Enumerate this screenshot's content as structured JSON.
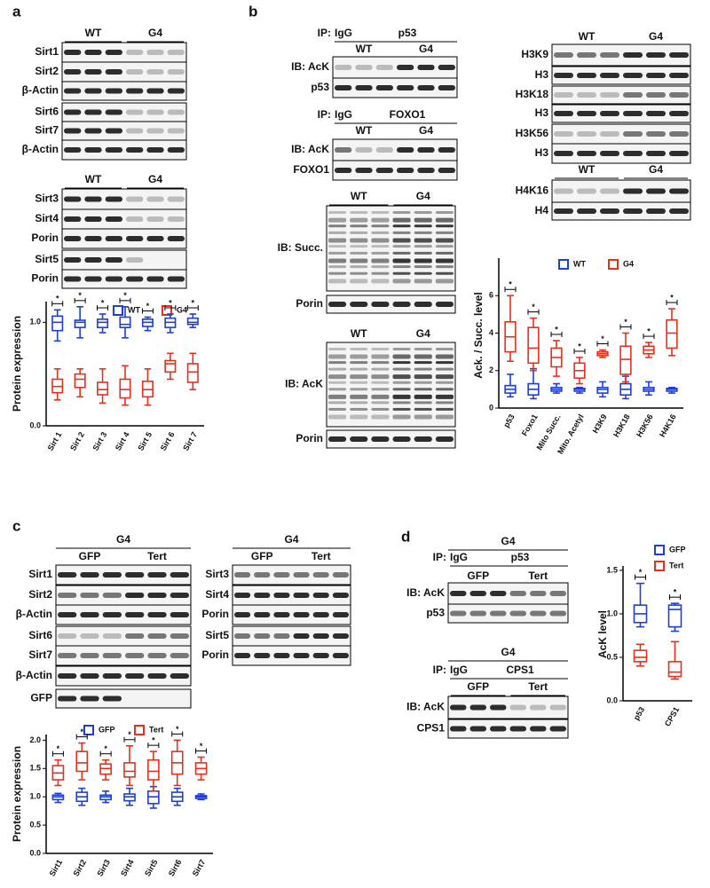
{
  "figure": {
    "panel_labels": [
      "a",
      "b",
      "c",
      "d"
    ],
    "blots": [
      {
        "groups": [
          "WT",
          "G4"
        ],
        "rows": [
          "Sirt1",
          "Sirt2",
          "β-Actin",
          "Sirt6",
          "Sirt7",
          "β-Actin"
        ]
      },
      {
        "groups": [
          "WT",
          "G4"
        ],
        "rows": [
          "Sirt3",
          "Sirt4",
          "Porin",
          "Sirt5",
          "Porin"
        ]
      },
      {
        "ip": {
          "prefix": "IP:",
          "control": "IgG",
          "target": "p53"
        },
        "groups": [
          "WT",
          "G4"
        ],
        "rows": [
          "IB: AcK",
          "p53"
        ]
      },
      {
        "ip": {
          "prefix": "IP:",
          "control": "IgG",
          "target": "FOXO1"
        },
        "groups": [
          "WT",
          "G4"
        ],
        "rows": [
          "IB: AcK",
          "FOXO1"
        ]
      },
      {
        "groups": [
          "WT",
          "G4"
        ],
        "rows": [
          "IB: Succ.",
          "Porin"
        ]
      },
      {
        "groups": [
          "WT",
          "G4"
        ],
        "rows": [
          "IB: AcK",
          "Porin"
        ]
      },
      {
        "groups": [
          "WT",
          "G4"
        ],
        "rows": [
          "H3K9",
          "H3",
          "H3K18",
          "H3",
          "H3K56",
          "H3"
        ]
      },
      {
        "groups": [
          "WT",
          "G4"
        ],
        "rows": [
          "H4K16",
          "H4"
        ]
      },
      {
        "header": "G4",
        "groups": [
          "GFP",
          "Tert"
        ],
        "rows": [
          "Sirt1",
          "Sirt2",
          "β-Actin",
          "Sirt6",
          "Sirt7",
          "β-Actin",
          "GFP"
        ]
      },
      {
        "header": "G4",
        "groups": [
          "GFP",
          "Tert"
        ],
        "rows": [
          "Sirt3",
          "Sirt4",
          "Porin",
          "Sirt5",
          "Porin"
        ]
      },
      {
        "header": "G4",
        "ip": {
          "prefix": "IP:",
          "control": "IgG",
          "target": "p53"
        },
        "groups": [
          "GFP",
          "Tert"
        ],
        "rows": [
          "IB: AcK",
          "p53"
        ]
      },
      {
        "header": "G4",
        "ip": {
          "prefix": "IP:",
          "control": "IgG",
          "target": "CPS1"
        },
        "groups": [
          "GFP",
          "Tert"
        ],
        "rows": [
          "IB: AcK",
          "CPS1"
        ]
      }
    ]
  },
  "chart_data": [
    {
      "type": "box",
      "ylabel": "Protein expression",
      "significance": "*",
      "categories": [
        "Sirt 1",
        "Sirt 2",
        "Sirt 3",
        "Sirt 4",
        "Sirt 5",
        "Sirt 6",
        "Sirt 7"
      ],
      "series": [
        {
          "name": "WT",
          "color": "#1c3fd6",
          "values": [
            [
              0.82,
              0.92,
              1.0,
              1.06,
              1.12
            ],
            [
              0.85,
              0.95,
              1.0,
              1.02,
              1.15
            ],
            [
              0.9,
              0.95,
              1.0,
              1.03,
              1.08
            ],
            [
              0.85,
              0.95,
              0.98,
              1.05,
              1.15
            ],
            [
              0.92,
              0.96,
              1.0,
              1.03,
              1.05
            ],
            [
              0.9,
              0.95,
              1.0,
              1.04,
              1.08
            ],
            [
              0.95,
              0.98,
              1.0,
              1.04,
              1.08
            ]
          ]
        },
        {
          "name": "G4",
          "color": "#e5301c",
          "values": [
            [
              0.25,
              0.32,
              0.38,
              0.45,
              0.55
            ],
            [
              0.28,
              0.37,
              0.45,
              0.5,
              0.55
            ],
            [
              0.22,
              0.3,
              0.35,
              0.42,
              0.55
            ],
            [
              0.2,
              0.27,
              0.35,
              0.45,
              0.58
            ],
            [
              0.2,
              0.28,
              0.35,
              0.43,
              0.55
            ],
            [
              0.45,
              0.52,
              0.6,
              0.63,
              0.7
            ],
            [
              0.35,
              0.42,
              0.52,
              0.6,
              0.7
            ]
          ]
        }
      ],
      "ylim": [
        0,
        1.2
      ],
      "yticks": [
        {
          "value": 0,
          "label": "0.0"
        },
        {
          "value": 1,
          "label": "1.0"
        }
      ]
    },
    {
      "type": "box",
      "ylabel": "Ack. / Succ. level",
      "significance": "*",
      "categories": [
        "p53",
        "Foxo1",
        "Mito Succ.",
        "Mito. Acetyl",
        "H3K9",
        "H3K18",
        "H3K56",
        "H4K16"
      ],
      "series": [
        {
          "name": "WT",
          "color": "#1c3fd6",
          "values": [
            [
              0.6,
              0.8,
              1.0,
              1.2,
              1.8
            ],
            [
              0.5,
              0.7,
              1.0,
              1.3,
              2.1
            ],
            [
              0.8,
              0.9,
              1.0,
              1.1,
              1.3
            ],
            [
              0.8,
              0.9,
              1.0,
              1.05,
              1.1
            ],
            [
              0.6,
              0.8,
              1.0,
              1.1,
              1.4
            ],
            [
              0.5,
              0.7,
              1.0,
              1.3,
              1.7
            ],
            [
              0.7,
              0.9,
              1.0,
              1.1,
              1.4
            ],
            [
              0.8,
              0.9,
              1.0,
              1.05,
              1.1
            ]
          ]
        },
        {
          "name": "G4",
          "color": "#e5301c",
          "values": [
            [
              2.5,
              3.0,
              3.8,
              4.6,
              6.0
            ],
            [
              2.0,
              2.4,
              3.2,
              4.3,
              4.8
            ],
            [
              1.7,
              2.2,
              2.7,
              3.2,
              3.6
            ],
            [
              1.3,
              1.6,
              2.0,
              2.4,
              2.7
            ],
            [
              2.7,
              2.8,
              2.9,
              3.0,
              3.1
            ],
            [
              1.4,
              1.8,
              2.6,
              3.3,
              4.0
            ],
            [
              2.7,
              2.9,
              3.1,
              3.3,
              3.5
            ],
            [
              2.8,
              3.2,
              4.0,
              4.7,
              5.3
            ]
          ]
        }
      ],
      "ylim": [
        0,
        8
      ],
      "yticks": [
        0,
        2,
        4,
        6
      ]
    },
    {
      "type": "box",
      "ylabel": "Protein expression",
      "significance": "*",
      "categories": [
        "Sirt1",
        "Sirt2",
        "Sirt3",
        "Sirt4",
        "Sirt5",
        "Sirt6",
        "Sirt7"
      ],
      "series": [
        {
          "name": "GFP",
          "color": "#1c3fd6",
          "values": [
            [
              0.9,
              0.95,
              1.0,
              1.03,
              1.06
            ],
            [
              0.85,
              0.92,
              1.0,
              1.08,
              1.15
            ],
            [
              0.9,
              0.95,
              1.0,
              1.03,
              1.1
            ],
            [
              0.85,
              0.93,
              1.0,
              1.05,
              1.15
            ],
            [
              0.8,
              0.88,
              1.0,
              1.1,
              1.18
            ],
            [
              0.85,
              0.92,
              1.0,
              1.08,
              1.15
            ],
            [
              0.95,
              0.97,
              1.0,
              1.02,
              1.05
            ]
          ]
        },
        {
          "name": "Tert",
          "color": "#e5301c",
          "values": [
            [
              1.2,
              1.3,
              1.42,
              1.55,
              1.65
            ],
            [
              1.3,
              1.45,
              1.6,
              1.8,
              1.95
            ],
            [
              1.3,
              1.4,
              1.5,
              1.58,
              1.65
            ],
            [
              1.2,
              1.35,
              1.45,
              1.6,
              1.9
            ],
            [
              1.1,
              1.3,
              1.45,
              1.65,
              1.8
            ],
            [
              1.2,
              1.4,
              1.6,
              1.8,
              2.0
            ],
            [
              1.3,
              1.4,
              1.5,
              1.6,
              1.7
            ]
          ]
        }
      ],
      "ylim": [
        0,
        2.1
      ],
      "yticks": [
        {
          "value": 0,
          "label": "0.0"
        },
        {
          "value": 0.5,
          "label": "0.5"
        },
        {
          "value": 1,
          "label": "1.0"
        },
        {
          "value": 1.5,
          "label": "1.5"
        },
        {
          "value": 2,
          "label": "2.0"
        }
      ]
    },
    {
      "type": "box",
      "ylabel": "AcK level",
      "significance": "*",
      "categories": [
        "p53",
        "CPS1"
      ],
      "series": [
        {
          "name": "GFP",
          "color": "#1c3fd6",
          "values": [
            [
              0.85,
              0.9,
              1.0,
              1.1,
              1.35
            ],
            [
              0.8,
              0.85,
              1.05,
              1.1,
              1.12
            ]
          ]
        },
        {
          "name": "Tert",
          "color": "#e5301c",
          "values": [
            [
              0.4,
              0.45,
              0.5,
              0.58,
              0.65
            ],
            [
              0.25,
              0.28,
              0.33,
              0.45,
              0.68
            ]
          ]
        }
      ],
      "ylim": [
        0,
        1.55
      ],
      "yticks": [
        {
          "value": 0,
          "label": "0.0"
        },
        {
          "value": 0.5,
          "label": "0.5"
        },
        {
          "value": 1,
          "label": "1.0"
        },
        {
          "value": 1.5,
          "label": "1.5"
        }
      ]
    }
  ]
}
